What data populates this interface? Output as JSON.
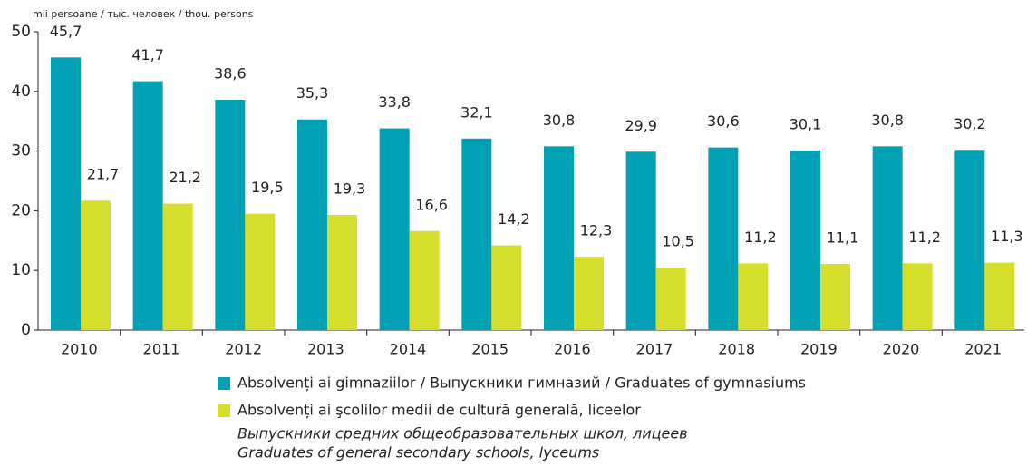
{
  "chart_data": {
    "type": "bar",
    "y_label": "mii persoane / тыс. человек / thou. persons",
    "categories": [
      "2010",
      "2011",
      "2012",
      "2013",
      "2014",
      "2015",
      "2016",
      "2017",
      "2018",
      "2019",
      "2020",
      "2021"
    ],
    "series": [
      {
        "name": "Absolvenți ai gimnaziilor / Выпускники гимназий / Graduates of gymnasiums",
        "color": "#00a1b5",
        "values": [
          45.7,
          41.7,
          38.6,
          35.3,
          33.8,
          32.1,
          30.8,
          29.9,
          30.6,
          30.1,
          30.8,
          30.2
        ],
        "value_labels": [
          "45,7",
          "41,7",
          "38,6",
          "35,3",
          "33,8",
          "32,1",
          "30,8",
          "29,9",
          "30,6",
          "30,1",
          "30,8",
          "30,2"
        ]
      },
      {
        "name": "Absolvenți ai şcolilor medii de cultură generală, liceelor",
        "color": "#d5df2b",
        "legend_lines": [
          "Выпускники средних общеобразовательных школ, лицеев",
          "Graduates of general secondary schools, lyceums"
        ],
        "values": [
          21.7,
          21.2,
          19.5,
          19.3,
          16.6,
          14.2,
          12.3,
          10.5,
          11.2,
          11.1,
          11.2,
          11.3
        ],
        "value_labels": [
          "21,7",
          "21,2",
          "19,5",
          "19,3",
          "16,6",
          "14,2",
          "12,3",
          "10,5",
          "11,2",
          "11,1",
          "11,2",
          "11,3"
        ]
      }
    ],
    "ylim": [
      0,
      50
    ],
    "yticks": [
      0,
      10,
      20,
      30,
      40,
      50
    ]
  }
}
